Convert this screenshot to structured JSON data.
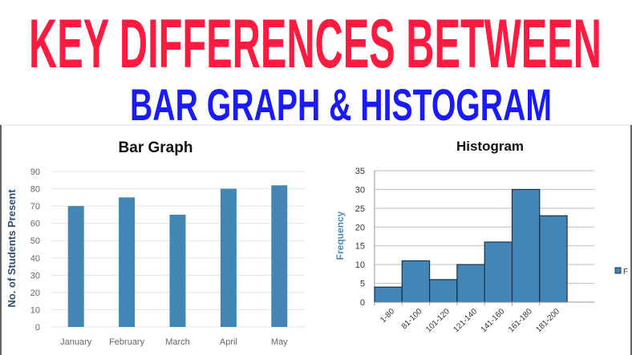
{
  "header": {
    "title": "KEY DIFFERENCES BETWEEN",
    "subtitle": "BAR GRAPH & HISTOGRAM",
    "title_color": "#ff1a40",
    "subtitle_color": "#1a1aff"
  },
  "chart_data": [
    {
      "type": "bar",
      "title": "Bar Graph",
      "xlabel": "",
      "ylabel": "No. of Students Present",
      "categories": [
        "January",
        "February",
        "March",
        "April",
        "May"
      ],
      "values": [
        70,
        75,
        65,
        80,
        82
      ],
      "ylim": [
        0,
        90
      ],
      "yticks": [
        "0",
        "10",
        "20",
        "30",
        "40",
        "50",
        "60",
        "70",
        "80",
        "90"
      ],
      "grid": true,
      "color": "#4386b5"
    },
    {
      "type": "bar",
      "title": "Histogram",
      "xlabel": "",
      "ylabel": "Frequency",
      "categories": [
        "1-80",
        "81-100",
        "101-120",
        "121-140",
        "141-160",
        "161-180",
        "181-200"
      ],
      "values": [
        4,
        11,
        6,
        10,
        16,
        30,
        23
      ],
      "ylim": [
        0,
        35
      ],
      "yticks": [
        "0",
        "5",
        "10",
        "15",
        "20",
        "25",
        "30",
        "35"
      ],
      "grid": true,
      "legend": "right",
      "legend_label": "F",
      "color": "#4386b5"
    }
  ]
}
